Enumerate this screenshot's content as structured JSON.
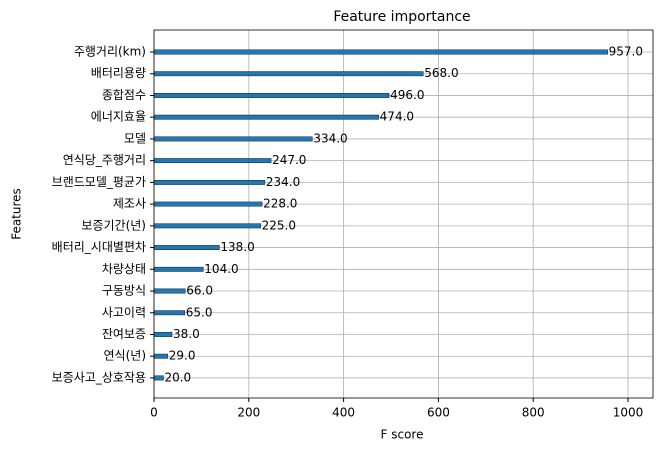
{
  "chart_data": {
    "type": "barh",
    "title": "Feature importance",
    "xlabel": "F score",
    "ylabel": "Features",
    "categories": [
      "주행거리(km)",
      "배터리용량",
      "종합점수",
      "에너지효율",
      "모델",
      "연식당_주행거리",
      "브랜드모델_평균가",
      "제조사",
      "보증기간(년)",
      "배터리_시대별편차",
      "차량상태",
      "구동방식",
      "사고이력",
      "잔여보증",
      "연식(년)",
      "보증사고_상호작용"
    ],
    "values": [
      957,
      568,
      496,
      474,
      334,
      247,
      234,
      228,
      225,
      138,
      104,
      66,
      65,
      38,
      29,
      20
    ],
    "value_labels": [
      "957.0",
      "568.0",
      "496.0",
      "474.0",
      "334.0",
      "247.0",
      "234.0",
      "228.0",
      "225.0",
      "138.0",
      "104.0",
      "66.0",
      "65.0",
      "38.0",
      "29.0",
      "20.0"
    ],
    "color": "#1f77b4",
    "xlim": [
      0,
      1052.7
    ],
    "xticks": [
      0,
      200,
      400,
      600,
      800,
      1000
    ],
    "grid": true
  }
}
